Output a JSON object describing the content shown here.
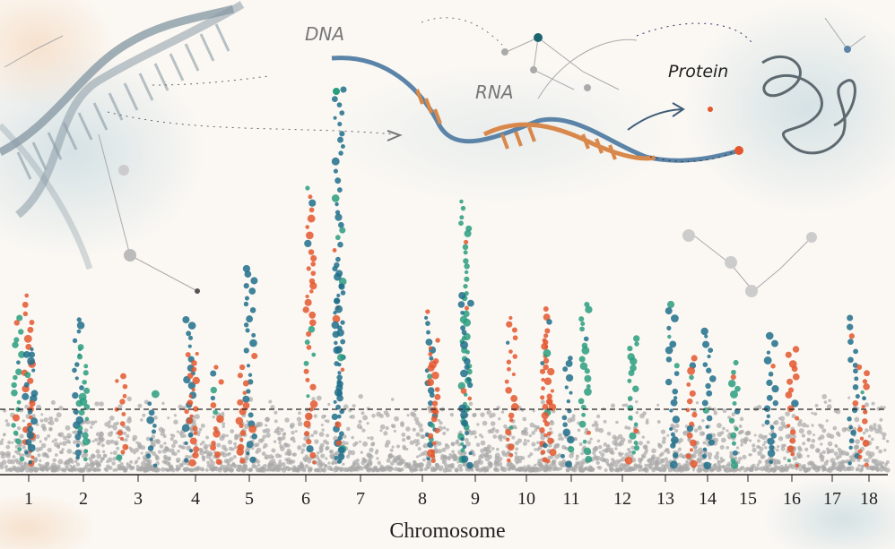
{
  "illustration": {
    "labels": {
      "dna": "DNA",
      "rna": "RNA",
      "protein": "Protein"
    }
  },
  "colors": {
    "background": "#fbf8f3",
    "blue": "#1f6f8b",
    "orange": "#e4572e",
    "green": "#2a9d7f",
    "grey": "#a8a8a8",
    "axis": "#222222"
  },
  "chart_data": {
    "type": "scatter",
    "subtype": "manhattan",
    "title": "",
    "xlabel": "Chromosome",
    "ylabel": "",
    "categories": [
      "1",
      "2",
      "3",
      "4",
      "5",
      "6",
      "7",
      "8",
      "9",
      "10",
      "11",
      "12",
      "13",
      "14",
      "15",
      "16",
      "17",
      "18"
    ],
    "significance_threshold": "dashed horizontal line",
    "grid": false,
    "y_axis_shown": false
  }
}
